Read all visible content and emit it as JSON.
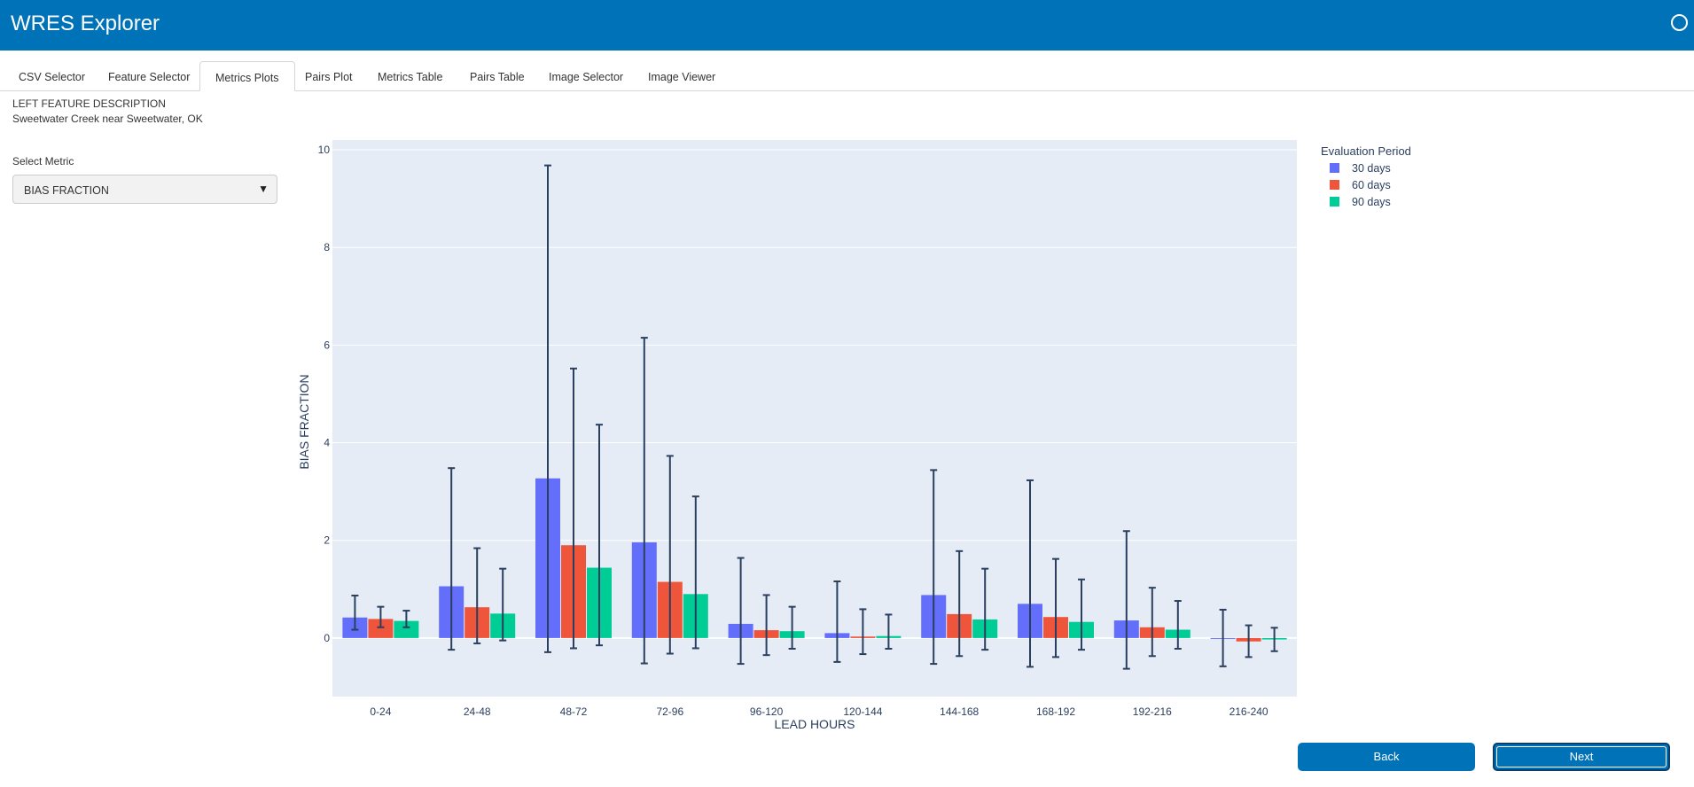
{
  "app": {
    "title": "WRES Explorer"
  },
  "tabs": [
    {
      "label": "CSV Selector"
    },
    {
      "label": "Feature Selector"
    },
    {
      "label": "Metrics Plots"
    },
    {
      "label": "Pairs Plot"
    },
    {
      "label": "Metrics Table"
    },
    {
      "label": "Pairs Table"
    },
    {
      "label": "Image Selector"
    },
    {
      "label": "Image Viewer"
    }
  ],
  "active_tab": "Metrics Plots",
  "feature": {
    "heading": "LEFT FEATURE DESCRIPTION",
    "value": "Sweetwater Creek near Sweetwater, OK"
  },
  "metric_select": {
    "label": "Select Metric",
    "value": "BIAS FRACTION"
  },
  "buttons": {
    "back": "Back",
    "next": "Next"
  },
  "chart_data": {
    "type": "bar",
    "xlabel": "LEAD HOURS",
    "ylabel": "BIAS FRACTION",
    "ylim": [
      -1.2,
      10.2
    ],
    "yticks": [
      0,
      2,
      4,
      6,
      8,
      10
    ],
    "grid": true,
    "legend_title": "Evaluation Period",
    "legend_position": "top-right outside",
    "categories": [
      "0-24",
      "24-48",
      "48-72",
      "72-96",
      "96-120",
      "120-144",
      "144-168",
      "168-192",
      "192-216",
      "216-240"
    ],
    "series": [
      {
        "name": "30 days",
        "color": "#636efa",
        "values": [
          0.42,
          1.06,
          3.27,
          1.96,
          0.29,
          0.1,
          0.88,
          0.7,
          0.36,
          0.0
        ],
        "error_low": [
          0.17,
          -0.24,
          -0.29,
          -0.52,
          -0.53,
          -0.49,
          -0.53,
          -0.59,
          -0.63,
          -0.58
        ],
        "error_high": [
          0.87,
          3.48,
          9.68,
          6.15,
          1.64,
          1.16,
          3.44,
          3.23,
          2.19,
          0.58
        ]
      },
      {
        "name": "60 days",
        "color": "#ef553b",
        "values": [
          0.39,
          0.63,
          1.9,
          1.15,
          0.16,
          0.03,
          0.49,
          0.43,
          0.22,
          -0.07
        ],
        "error_low": [
          0.22,
          -0.11,
          -0.21,
          -0.32,
          -0.35,
          -0.33,
          -0.37,
          -0.39,
          -0.37,
          -0.39
        ],
        "error_high": [
          0.64,
          1.84,
          5.52,
          3.73,
          0.88,
          0.59,
          1.78,
          1.62,
          1.03,
          0.26
        ]
      },
      {
        "name": "90 days",
        "color": "#00cc96",
        "values": [
          0.35,
          0.5,
          1.44,
          0.9,
          0.14,
          0.04,
          0.38,
          0.33,
          0.17,
          -0.03
        ],
        "error_low": [
          0.22,
          -0.05,
          -0.15,
          -0.21,
          -0.22,
          -0.22,
          -0.24,
          -0.24,
          -0.22,
          -0.27
        ],
        "error_high": [
          0.56,
          1.42,
          4.37,
          2.9,
          0.64,
          0.48,
          1.42,
          1.2,
          0.76,
          0.21
        ]
      }
    ]
  }
}
